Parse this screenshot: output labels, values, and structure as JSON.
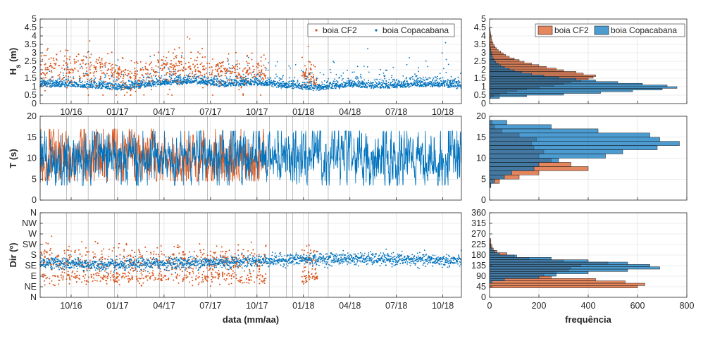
{
  "colors": {
    "cf2": "#D95319",
    "copa": "#0072BD",
    "axis": "#262626",
    "grid": "#d9d9d9",
    "vline": "#7f7f7f"
  },
  "chart_data": [
    {
      "id": "hs_time",
      "type": "scatter",
      "ylabel": "H_s (m)",
      "ylabel_main": "H",
      "ylabel_sub": "s",
      "ylabel_unit": " (m)",
      "ylim": [
        0,
        5
      ],
      "yticks": [
        0,
        0.5,
        1,
        1.5,
        2,
        2.5,
        3,
        3.5,
        4,
        4.5,
        5
      ],
      "ytick_labels": [
        "0",
        "0.5",
        "1",
        "1.5",
        "2",
        "2.5",
        "3",
        "3.5",
        "4",
        "4.5",
        "5"
      ],
      "xlim": [
        0,
        27.2
      ],
      "xticks": [
        2,
        5,
        8,
        11,
        14,
        17,
        20,
        23,
        26
      ],
      "xtick_labels": [
        "10/16",
        "01/17",
        "04/17",
        "07/17",
        "10/17",
        "01/18",
        "04/18",
        "07/18",
        "10/18"
      ],
      "xlabel": "",
      "legend": [
        "boia CF2",
        "boia Copacabana"
      ],
      "legend_position": "top-right",
      "series": [
        {
          "name": "boia CF2",
          "x_range": [
            0,
            14.6
          ],
          "gap": [
            16.0,
            16.9
          ],
          "x2_range": [
            16.9,
            17.9
          ],
          "anchors_x": [
            0,
            1,
            2,
            3,
            4,
            5,
            6,
            7,
            8,
            9,
            10,
            11,
            12,
            13,
            14,
            14.6,
            16.9,
            17.9
          ],
          "anchors_y": [
            1.8,
            2.2,
            1.9,
            2.0,
            2.1,
            1.7,
            1.6,
            1.8,
            2.0,
            2.3,
            2.1,
            1.9,
            2.0,
            1.8,
            2.0,
            1.9,
            1.6,
            1.4
          ],
          "spread": 0.5,
          "max": 4.5
        },
        {
          "name": "boia Copacabana",
          "x_range": [
            0,
            27.2
          ],
          "anchors_x": [
            0,
            2,
            4,
            5,
            6,
            8,
            10,
            12,
            14,
            16,
            18,
            20,
            22,
            24,
            26,
            27.2
          ],
          "anchors_y": [
            1.1,
            1.1,
            1.0,
            0.9,
            1.0,
            1.2,
            1.3,
            1.1,
            1.2,
            1.0,
            0.9,
            1.1,
            1.0,
            1.1,
            1.1,
            1.0
          ],
          "spread": 0.3,
          "max": 3.6
        }
      ]
    },
    {
      "id": "t_time",
      "type": "line",
      "ylabel": "T (s)",
      "ylim": [
        0,
        20
      ],
      "yticks": [
        0,
        5,
        10,
        15,
        20
      ],
      "ytick_labels": [
        "0",
        "5",
        "10",
        "15",
        "20"
      ],
      "xlim": [
        0,
        27.2
      ],
      "xticks": [
        2,
        5,
        8,
        11,
        14,
        17,
        20,
        23,
        26
      ],
      "xtick_labels": [],
      "series": [
        {
          "name": "boia CF2",
          "x_range": [
            0,
            14.6
          ],
          "mean": 9.8,
          "min": 4.5,
          "max": 17
        },
        {
          "name": "boia Copacabana",
          "x_range": [
            0,
            27.2
          ],
          "mean": 10.2,
          "min": 3.5,
          "max": 16.5
        }
      ]
    },
    {
      "id": "dir_time",
      "type": "scatter",
      "ylabel": "Dir (º)",
      "ylim": [
        0,
        360
      ],
      "yticks": [
        0,
        45,
        90,
        135,
        180,
        225,
        270,
        315,
        360
      ],
      "ytick_labels": [
        "N",
        "NE",
        "E",
        "SE",
        "S",
        "SW",
        "W",
        "NW",
        "N"
      ],
      "xlim": [
        0,
        27.2
      ],
      "xticks": [
        2,
        5,
        8,
        11,
        14,
        17,
        20,
        23,
        26
      ],
      "xtick_labels": [
        "10/16",
        "01/17",
        "04/17",
        "07/17",
        "10/17",
        "01/18",
        "04/18",
        "07/18",
        "10/18"
      ],
      "xlabel": "data (mm/aa)",
      "series": [
        {
          "name": "boia CF2",
          "x_range": [
            0,
            14.6
          ],
          "gap": [
            16.0,
            16.9
          ],
          "x2_range": [
            16.9,
            17.9
          ],
          "clusters": [
            {
              "center": 160,
              "spread": 30
            },
            {
              "center": 85,
              "spread": 15
            }
          ]
        },
        {
          "name": "boia Copacabana",
          "x_range": [
            0,
            27.2
          ],
          "anchors_x": [
            0,
            4,
            8,
            12,
            16,
            20,
            24,
            27.2
          ],
          "anchors_y": [
            150,
            135,
            145,
            150,
            160,
            165,
            160,
            155
          ],
          "spread": 18
        }
      ]
    },
    {
      "id": "hs_hist",
      "type": "bar",
      "orientation": "horizontal",
      "ylim": [
        0,
        5
      ],
      "yticks": [
        0,
        0.5,
        1,
        1.5,
        2,
        2.5,
        3,
        3.5,
        4,
        4.5,
        5
      ],
      "ytick_labels": [
        "0",
        "0.5",
        "1",
        "1.5",
        "2",
        "2.5",
        "3",
        "3.5",
        "4",
        "4.5",
        "5"
      ],
      "xlim": [
        0,
        800
      ],
      "xticks": [
        0,
        200,
        400,
        600,
        800
      ],
      "xtick_labels": [],
      "bin_width": 0.1,
      "bin_start": 0.3,
      "legend": [
        "boia CF2",
        "boia Copacabana"
      ],
      "legend_position": "top-right",
      "series": [
        {
          "name": "boia CF2",
          "values": [
            5,
            15,
            40,
            70,
            110,
            150,
            200,
            260,
            300,
            330,
            370,
            400,
            420,
            430,
            380,
            350,
            300,
            270,
            230,
            200,
            170,
            140,
            120,
            100,
            80,
            65,
            55,
            45,
            35,
            28,
            22,
            18,
            14,
            11,
            9,
            7,
            6,
            5,
            4,
            3,
            2,
            2
          ]
        },
        {
          "name": "boia Copacabana",
          "values": [
            40,
            150,
            300,
            450,
            580,
            700,
            760,
            720,
            620,
            520,
            430,
            350,
            280,
            220,
            170,
            130,
            100,
            80,
            60,
            45,
            35,
            25,
            20,
            15,
            12,
            10,
            8,
            6,
            5,
            4,
            3,
            2,
            2,
            1,
            1,
            1,
            1,
            0,
            0,
            0,
            0,
            0
          ]
        }
      ]
    },
    {
      "id": "t_hist",
      "type": "bar",
      "orientation": "horizontal",
      "ylim": [
        0,
        20
      ],
      "yticks": [
        0,
        5,
        10,
        15,
        20
      ],
      "ytick_labels": [
        "0",
        "5",
        "10",
        "15",
        "20"
      ],
      "xlim": [
        0,
        800
      ],
      "xticks": [
        0,
        200,
        400,
        600,
        800
      ],
      "xtick_labels": [],
      "bin_width": 1,
      "bin_start": 3,
      "series": [
        {
          "name": "boia CF2",
          "values": [
            5,
            40,
            120,
            200,
            400,
            330,
            250,
            200,
            220,
            180,
            170,
            190,
            120,
            50,
            20,
            10
          ]
        },
        {
          "name": "boia Copacabana",
          "values": [
            5,
            20,
            60,
            90,
            180,
            200,
            280,
            470,
            540,
            680,
            770,
            690,
            650,
            440,
            250,
            70
          ]
        }
      ]
    },
    {
      "id": "dir_hist",
      "type": "bar",
      "orientation": "horizontal",
      "ylim": [
        0,
        360
      ],
      "yticks": [
        0,
        45,
        90,
        135,
        180,
        225,
        270,
        315,
        360
      ],
      "ytick_labels": [
        "0",
        "45",
        "90",
        "135",
        "180",
        "225",
        "270",
        "315",
        "360"
      ],
      "xlim": [
        0,
        800
      ],
      "xticks": [
        0,
        200,
        400,
        600,
        800
      ],
      "xtick_labels": [
        "0",
        "200",
        "400",
        "600",
        "800"
      ],
      "xlabel": "frequência",
      "bin_width": 10,
      "bin_start": 40,
      "series": [
        {
          "name": "boia CF2",
          "values": [
            600,
            630,
            550,
            430,
            250,
            220,
            270,
            320,
            330,
            370,
            480,
            300,
            160,
            100,
            70,
            30,
            15,
            10,
            5,
            5,
            5
          ]
        },
        {
          "name": "boia Copacabana",
          "values": [
            0,
            0,
            10,
            60,
            200,
            270,
            400,
            560,
            690,
            650,
            560,
            400,
            250,
            110,
            40,
            20,
            10,
            5,
            0,
            0,
            0
          ]
        }
      ]
    }
  ]
}
